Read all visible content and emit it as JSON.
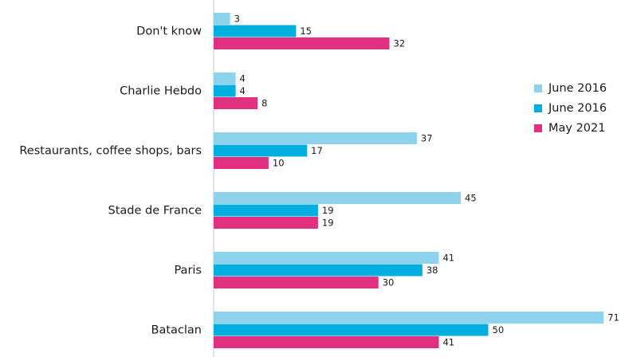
{
  "chart_data": {
    "type": "bar",
    "orientation": "horizontal",
    "categories": [
      "Don't know",
      "Charlie Hebdo",
      "Restaurants, coffee shops, bars",
      "Stade de France",
      "Paris",
      "Bataclan"
    ],
    "series": [
      {
        "name": "June 2016",
        "color": "#8dd3ee",
        "values": [
          3,
          4,
          37,
          45,
          41,
          71
        ]
      },
      {
        "name": "June 2016",
        "color": "#00aee0",
        "values": [
          15,
          4,
          17,
          19,
          38,
          50
        ]
      },
      {
        "name": "May 2021",
        "color": "#e0307f",
        "values": [
          32,
          8,
          10,
          19,
          30,
          41
        ]
      }
    ],
    "xlim": [
      0,
      71
    ],
    "legend_position": "right",
    "grid": false
  }
}
